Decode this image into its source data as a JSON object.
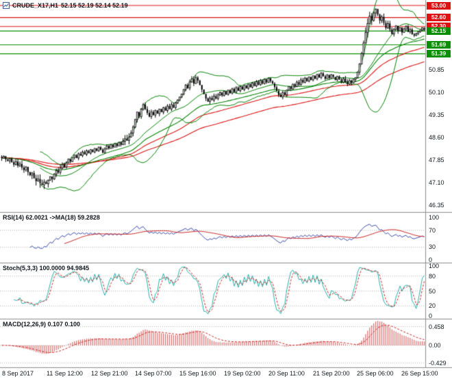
{
  "window": {
    "title_symbol": "CRUDE_X17,H1",
    "title_ohlc": "52.15 52.19 52.14 52.19"
  },
  "colors": {
    "resistance": "#dd1111",
    "support": "#089000",
    "candle": "#000000",
    "bands": "#008000",
    "ma_green": "#008000",
    "ma_red": "#dd1111",
    "rsi": "#3949ab",
    "rsi_ma": "#cc2222",
    "stoch_k": "#20b2aa",
    "stoch_d": "#cc2222",
    "macd_hist": "#d96b6b",
    "macd_signal": "#cc2222",
    "grid_dot": "#b5b5b5",
    "separator": "#8c8c8c",
    "axis_text": "#10151c"
  },
  "chart_data": {
    "type": "candlestick",
    "title": "CRUDE_X17,H1 52.15 52.19 52.14 52.19",
    "symbol": "CRUDE_X17",
    "timeframe": "H1",
    "x_labels": [
      "8 Sep 2017",
      "11 Sep 12:00",
      "12 Sep 21:00",
      "14 Sep 07:00",
      "15 Sep 16:00",
      "19 Sep 02:00",
      "20 Sep 11:00",
      "21 Sep 20:00",
      "25 Sep 06:00",
      "26 Sep 15:00"
    ],
    "y_ticks": [
      "50.85",
      "50.10",
      "49.35",
      "48.60",
      "47.85",
      "47.10",
      "46.35"
    ],
    "y_range": {
      "min": 46.35,
      "max": 53.0
    },
    "levels": {
      "resistance": [
        53.0,
        52.6,
        52.3
      ],
      "support": [
        52.15,
        51.69,
        51.39
      ]
    },
    "closes": [
      47.92,
      47.98,
      47.88,
      47.82,
      47.9,
      47.78,
      47.7,
      47.8,
      47.66,
      47.72,
      47.6,
      47.52,
      47.62,
      47.45,
      47.35,
      47.42,
      47.25,
      47.15,
      47.22,
      47.08,
      47.02,
      47.12,
      47.06,
      47.18,
      47.3,
      47.22,
      47.38,
      47.5,
      47.44,
      47.58,
      47.7,
      47.62,
      47.76,
      47.88,
      47.8,
      47.94,
      48.02,
      47.92,
      48.06,
      48.0,
      48.12,
      48.04,
      48.16,
      48.08,
      48.2,
      48.12,
      48.24,
      48.16,
      48.28,
      48.2,
      48.1,
      48.22,
      48.32,
      48.24,
      48.36,
      48.28,
      48.4,
      48.32,
      48.44,
      48.36,
      48.48,
      48.56,
      48.5,
      48.62,
      48.75,
      48.95,
      49.2,
      49.45,
      49.3,
      49.55,
      49.7,
      49.55,
      49.42,
      49.3,
      49.45,
      49.35,
      49.5,
      49.4,
      49.55,
      49.45,
      49.6,
      49.5,
      49.65,
      49.55,
      49.7,
      49.6,
      49.75,
      49.85,
      49.95,
      50.05,
      50.2,
      50.35,
      50.25,
      50.45,
      50.55,
      50.4,
      50.6,
      50.5,
      50.35,
      50.2,
      50.05,
      49.9,
      49.8,
      49.92,
      49.85,
      49.98,
      49.9,
      50.02,
      50.1,
      50.0,
      50.14,
      50.04,
      50.18,
      50.08,
      50.22,
      50.12,
      50.26,
      50.16,
      50.3,
      50.2,
      50.34,
      50.24,
      50.38,
      50.28,
      50.42,
      50.32,
      50.46,
      50.36,
      50.5,
      50.4,
      50.54,
      50.44,
      50.58,
      50.48,
      50.4,
      50.28,
      50.15,
      50.02,
      49.95,
      50.1,
      50.02,
      50.18,
      50.3,
      50.22,
      50.38,
      50.3,
      50.45,
      50.36,
      50.52,
      50.44,
      50.58,
      50.48,
      50.62,
      50.52,
      50.66,
      50.56,
      50.7,
      50.6,
      50.74,
      50.64,
      50.56,
      50.68,
      50.58,
      50.7,
      50.62,
      50.52,
      50.64,
      50.54,
      50.44,
      50.56,
      50.46,
      50.38,
      50.5,
      50.42,
      50.54,
      50.6,
      50.78,
      51.05,
      51.4,
      51.75,
      52.1,
      52.4,
      52.65,
      52.5,
      52.75,
      52.88,
      52.7,
      52.5,
      52.62,
      52.42,
      52.25,
      52.4,
      52.2,
      52.05,
      52.2,
      52.32,
      52.15,
      52.26,
      52.1,
      52.22,
      52.3,
      52.12,
      52.2,
      52.04,
      52.0,
      52.06,
      52.12,
      52.18,
      52.26,
      52.19
    ],
    "wick_amplitude_per_10_bars": [
      0.1,
      0.16,
      0.14,
      0.08,
      0.06,
      0.06,
      0.14,
      0.1,
      0.08,
      0.1,
      0.09,
      0.06,
      0.06,
      0.08,
      0.08,
      0.06,
      0.06,
      0.1,
      0.18,
      0.1,
      0.07
    ],
    "overlays": {
      "bollinger_period": 20,
      "bollinger_dev": 2,
      "ema_green": 40,
      "ema_red": [
        60,
        100
      ]
    },
    "sub_charts": [
      {
        "name": "rsi",
        "label": "RSI(14) 62.0021 ->MA(18) 59.2828",
        "period": 14,
        "ma_period": 18,
        "scale": [
          100,
          70,
          30,
          0
        ],
        "value": "62.0021",
        "ma_value": "59.2828"
      },
      {
        "name": "stochastic",
        "label": "Stoch(5,3,3) 100.0000 94.9845",
        "k_period": 5,
        "slowing": 3,
        "d_period": 3,
        "scale": [
          100,
          80,
          50,
          20,
          0
        ],
        "k_value": "100.0000",
        "d_value": "94.9845"
      },
      {
        "name": "macd",
        "label": "MACD(12,26,9) 0.107 0.100",
        "fast": 12,
        "slow": 26,
        "signal_period": 9,
        "scale": [
          "0.458",
          "0.00",
          "-0.429"
        ],
        "scale_values": [
          0.458,
          0,
          -0.429
        ],
        "macd_value": "0.107",
        "signal_value": "0.100"
      }
    ]
  }
}
